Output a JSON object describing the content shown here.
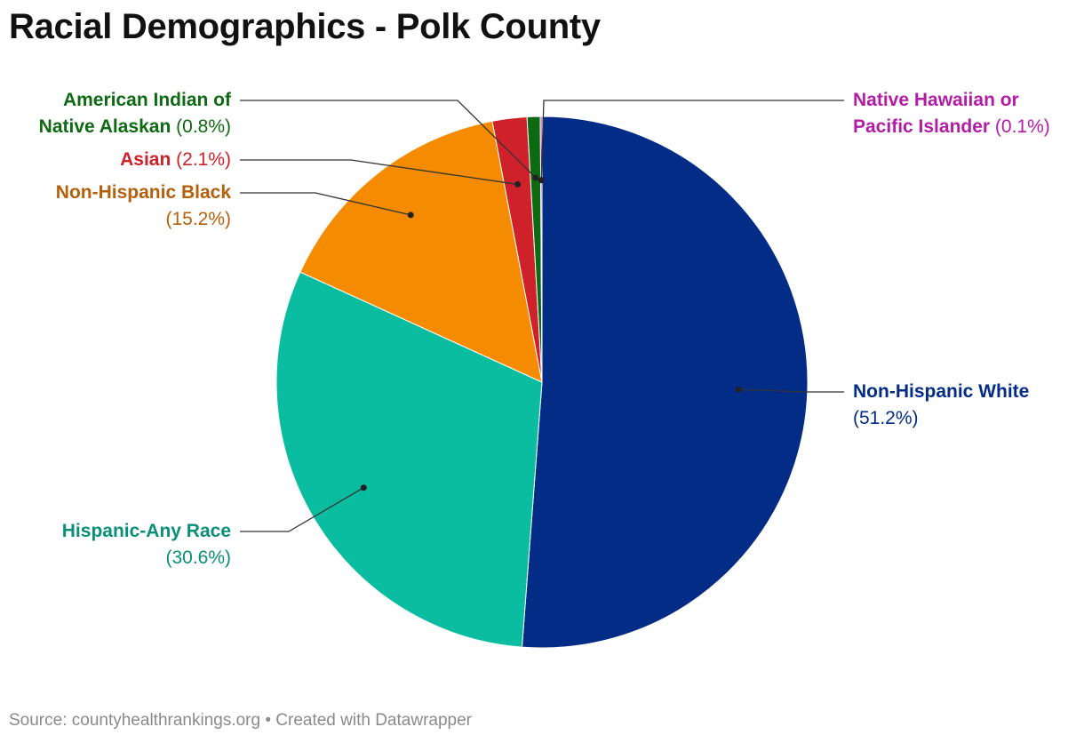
{
  "chart_data": {
    "type": "pie",
    "title": "Racial Demographics - Polk County",
    "source": "Source: countyhealthrankings.org • Created with Datawrapper",
    "unit": "%",
    "slices": [
      {
        "name": "Non-Hispanic White",
        "value": 51.2,
        "label": "(51.2%)",
        "color": "#032C87"
      },
      {
        "name": "Hispanic-Any Race",
        "value": 30.6,
        "label": "(30.6%)",
        "color": "#0BBDA0"
      },
      {
        "name": "Non-Hispanic Black",
        "value": 15.2,
        "label": "(15.2%)",
        "color": "#F58B00"
      },
      {
        "name": "Asian",
        "value": 2.1,
        "label": "(2.1%)",
        "color": "#CF2129"
      },
      {
        "name": "American Indian of Native Alaskan",
        "value": 0.8,
        "label": "(0.8%)",
        "color": "#0E6A12"
      },
      {
        "name": "Native Hawaiian or Pacific Islander",
        "value": 0.1,
        "label": "(0.1%)",
        "color": "#B31CA6"
      }
    ],
    "label_text_colors": {
      "Non-Hispanic White": "#032C87",
      "Hispanic-Any Race": "#0A8F7A",
      "Non-Hispanic Black": "#B5600A",
      "Asian": "#CF2129",
      "American Indian of Native Alaskan": "#0E6A12",
      "Native Hawaiian or Pacific Islander": "#B31CA6"
    },
    "name_lines": {
      "Non-Hispanic White": [
        "Non-Hispanic White"
      ],
      "Hispanic-Any Race": [
        "Hispanic-Any Race"
      ],
      "Non-Hispanic Black": [
        "Non-Hispanic Black"
      ],
      "Asian": [
        "Asian"
      ],
      "American Indian of Native Alaskan": [
        "American Indian of",
        "Native Alaskan"
      ],
      "Native Hawaiian or Pacific Islander": [
        "Native Hawaiian or",
        "Pacific Islander"
      ]
    }
  }
}
